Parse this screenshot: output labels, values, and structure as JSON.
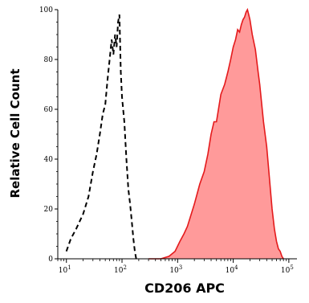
{
  "chart_data": {
    "type": "area",
    "title": "",
    "xlabel": "CD206 APC",
    "ylabel": "Relative Cell Count",
    "x_scale": "log",
    "xlim": [
      7,
      140000
    ],
    "ylim": [
      0,
      100
    ],
    "grid": false,
    "x_ticks": [
      {
        "base": "10",
        "exp": "1",
        "value": 10
      },
      {
        "base": "10",
        "exp": "2",
        "value": 100
      },
      {
        "base": "10",
        "exp": "3",
        "value": 1000
      },
      {
        "base": "10",
        "exp": "4",
        "value": 10000
      },
      {
        "base": "10",
        "exp": "5",
        "value": 100000
      }
    ],
    "y_ticks": [
      "0",
      "20",
      "40",
      "60",
      "80",
      "100"
    ],
    "series": [
      {
        "style": "dashed outline",
        "color": "#000000",
        "x": [
          10,
          12,
          15,
          20,
          25,
          30,
          35,
          40,
          45,
          50,
          55,
          60,
          65,
          70,
          75,
          80,
          85,
          90,
          95,
          100,
          110,
          120,
          130,
          140,
          150,
          160,
          170,
          180
        ],
        "y": [
          3,
          8,
          12,
          18,
          25,
          35,
          42,
          50,
          58,
          62,
          72,
          80,
          88,
          82,
          90,
          85,
          95,
          98,
          75,
          65,
          55,
          40,
          28,
          22,
          15,
          8,
          3,
          0
        ]
      },
      {
        "style": "filled",
        "color": "#e41a1c",
        "fill": "#ff9a9a",
        "x": [
          300,
          500,
          700,
          900,
          1100,
          1300,
          1500,
          2000,
          2500,
          3000,
          3500,
          4000,
          4500,
          5000,
          6000,
          7000,
          8000,
          9000,
          10000,
          11000,
          12000,
          13000,
          14000,
          15000,
          16000,
          17000,
          18000,
          19000,
          20000,
          22000,
          25000,
          28000,
          30000,
          35000,
          40000,
          45000,
          50000,
          55000,
          60000,
          65000,
          70000,
          75000,
          80000
        ],
        "y": [
          0,
          0,
          1,
          3,
          7,
          10,
          13,
          22,
          30,
          35,
          42,
          50,
          55,
          55,
          66,
          70,
          75,
          80,
          85,
          88,
          92,
          91,
          94,
          96,
          97,
          99,
          100,
          98,
          96,
          90,
          84,
          75,
          70,
          55,
          45,
          32,
          20,
          12,
          7,
          4,
          3,
          1,
          0
        ]
      }
    ]
  }
}
